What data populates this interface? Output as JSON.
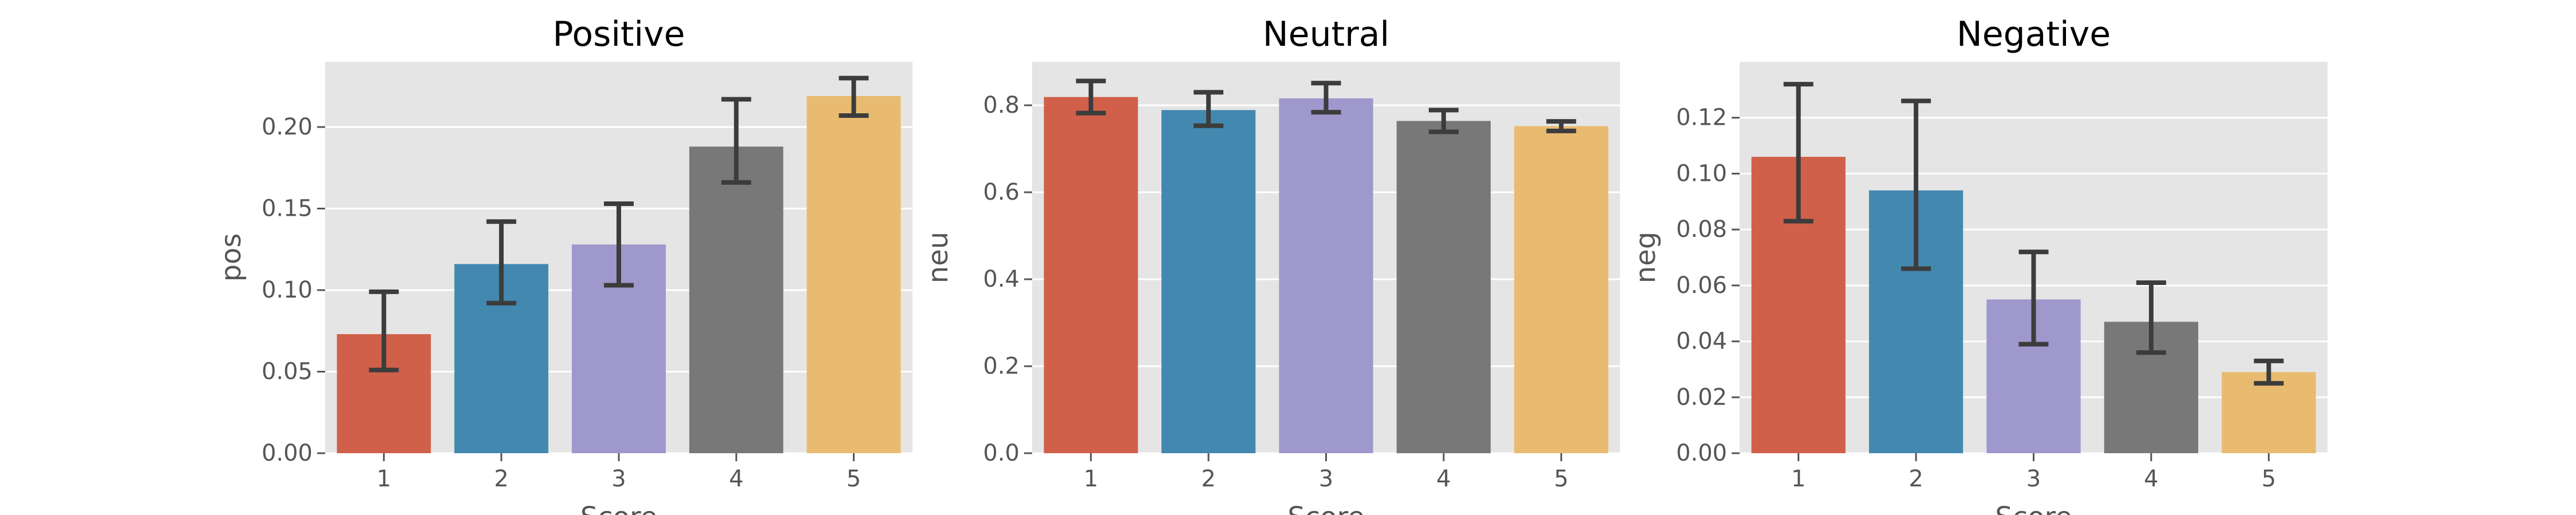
{
  "chart_data": [
    {
      "type": "bar",
      "title": "Positive",
      "xlabel": "Score",
      "ylabel": "pos",
      "categories": [
        "1",
        "2",
        "3",
        "4",
        "5"
      ],
      "values": [
        0.073,
        0.116,
        0.128,
        0.188,
        0.219
      ],
      "error_low": [
        0.051,
        0.092,
        0.103,
        0.166,
        0.207
      ],
      "error_high": [
        0.099,
        0.142,
        0.153,
        0.217,
        0.23
      ],
      "ylim": [
        0,
        0.24
      ],
      "yticks": [
        "0.00",
        "0.05",
        "0.10",
        "0.15",
        "0.20"
      ],
      "grid": true
    },
    {
      "type": "bar",
      "title": "Neutral",
      "xlabel": "Score",
      "ylabel": "neu",
      "categories": [
        "1",
        "2",
        "3",
        "4",
        "5"
      ],
      "values": [
        0.819,
        0.789,
        0.816,
        0.764,
        0.752
      ],
      "error_low": [
        0.782,
        0.753,
        0.784,
        0.739,
        0.741
      ],
      "error_high": [
        0.856,
        0.83,
        0.851,
        0.789,
        0.763
      ],
      "ylim": [
        0,
        0.9
      ],
      "yticks": [
        "0.0",
        "0.2",
        "0.4",
        "0.6",
        "0.8"
      ],
      "grid": true
    },
    {
      "type": "bar",
      "title": "Negative",
      "xlabel": "Score",
      "ylabel": "neg",
      "categories": [
        "1",
        "2",
        "3",
        "4",
        "5"
      ],
      "values": [
        0.106,
        0.094,
        0.055,
        0.047,
        0.029
      ],
      "error_low": [
        0.083,
        0.066,
        0.039,
        0.036,
        0.025
      ],
      "error_high": [
        0.132,
        0.126,
        0.072,
        0.061,
        0.033
      ],
      "ylim": [
        0,
        0.14
      ],
      "yticks": [
        "0.00",
        "0.02",
        "0.04",
        "0.06",
        "0.08",
        "0.10",
        "0.12"
      ],
      "grid": true
    }
  ],
  "colors": {
    "bars": [
      "#d0604a",
      "#4388af",
      "#9e98cc",
      "#787878",
      "#e8bb70"
    ],
    "panel_bg": "#e5e5e5",
    "grid": "#ffffff",
    "errorbar": "#3c3c3c",
    "text": "#555555",
    "title": "#000000"
  }
}
